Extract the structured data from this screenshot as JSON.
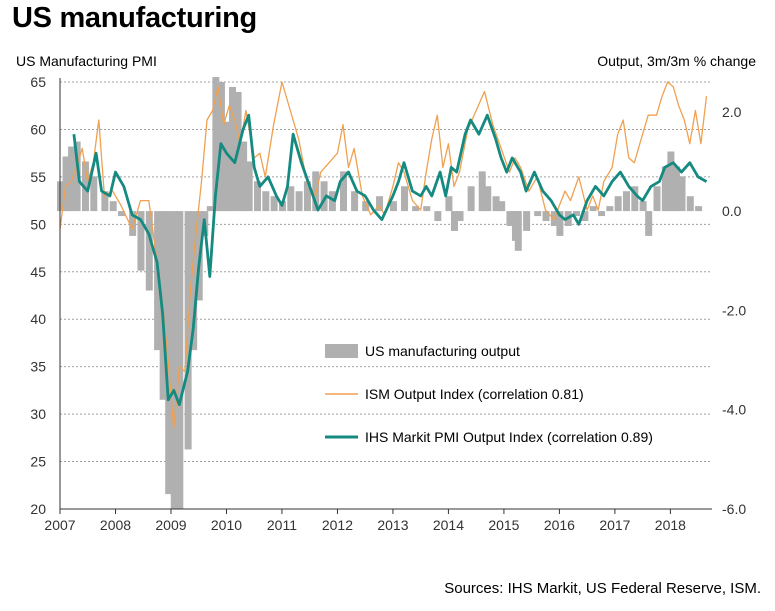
{
  "page": {
    "title": "US manufacturing",
    "source": "Sources: IHS Markit, US Federal Reserve, ISM."
  },
  "chart_data": {
    "type": "bar+line",
    "title": "US manufacturing",
    "ylabel_left": "US Manufacturing PMI",
    "ylabel_right": "Output, 3m/3m % change",
    "y_left_range": [
      20,
      65
    ],
    "y_left_ticks": [
      "20",
      "25",
      "30",
      "35",
      "40",
      "45",
      "50",
      "55",
      "60",
      "65"
    ],
    "y_right_range": [
      -6.0,
      2.6
    ],
    "y_right_ticks": [
      "-6.0",
      "-4.0",
      "-2.0",
      "0.0",
      "2.0"
    ],
    "x_range": [
      2007.0,
      2018.75
    ],
    "x_ticks": [
      "2007",
      "2008",
      "2009",
      "2010",
      "2011",
      "2012",
      "2013",
      "2014",
      "2015",
      "2016",
      "2017",
      "2018"
    ],
    "grid": "horizontal dashed",
    "legend": {
      "placement": "center-right",
      "entries": [
        "US manufacturing output",
        "ISM Output Index (correlation 0.81)",
        "IHS Markit PMI Output Index (correlation 0.89)"
      ]
    },
    "colors": {
      "output": "#b0b0b0",
      "ism": "#f0a050",
      "pmi": "#158a80"
    },
    "series": [
      {
        "name": "US manufacturing output",
        "axis": "right",
        "kind": "bar",
        "points": [
          [
            2007.0,
            0.6
          ],
          [
            2007.1,
            1.1
          ],
          [
            2007.2,
            1.3
          ],
          [
            2007.3,
            1.4
          ],
          [
            2007.45,
            1.0
          ],
          [
            2007.6,
            0.7
          ],
          [
            2007.8,
            0.4
          ],
          [
            2007.95,
            0.2
          ],
          [
            2008.1,
            -0.1
          ],
          [
            2008.3,
            -0.5
          ],
          [
            2008.45,
            -1.2
          ],
          [
            2008.6,
            -1.6
          ],
          [
            2008.75,
            -2.8
          ],
          [
            2008.85,
            -3.8
          ],
          [
            2008.95,
            -5.7
          ],
          [
            2009.05,
            -6.0
          ],
          [
            2009.15,
            -6.0
          ],
          [
            2009.3,
            -4.8
          ],
          [
            2009.4,
            -2.8
          ],
          [
            2009.5,
            -1.8
          ],
          [
            2009.6,
            -0.5
          ],
          [
            2009.7,
            0.1
          ],
          [
            2009.8,
            2.7
          ],
          [
            2009.9,
            2.6
          ],
          [
            2010.0,
            1.8
          ],
          [
            2010.1,
            2.5
          ],
          [
            2010.2,
            2.4
          ],
          [
            2010.3,
            1.4
          ],
          [
            2010.4,
            1.0
          ],
          [
            2010.55,
            0.6
          ],
          [
            2010.7,
            0.4
          ],
          [
            2010.85,
            0.3
          ],
          [
            2011.0,
            0.2
          ],
          [
            2011.15,
            0.5
          ],
          [
            2011.3,
            0.4
          ],
          [
            2011.45,
            0.6
          ],
          [
            2011.6,
            0.8
          ],
          [
            2011.75,
            0.6
          ],
          [
            2011.9,
            0.4
          ],
          [
            2012.1,
            0.8
          ],
          [
            2012.3,
            0.4
          ],
          [
            2012.5,
            0.2
          ],
          [
            2012.75,
            0.3
          ],
          [
            2013.0,
            0.2
          ],
          [
            2013.2,
            0.5
          ],
          [
            2013.4,
            0.1
          ],
          [
            2013.6,
            0.1
          ],
          [
            2013.8,
            -0.2
          ],
          [
            2014.0,
            0.3
          ],
          [
            2014.1,
            -0.4
          ],
          [
            2014.2,
            -0.2
          ],
          [
            2014.4,
            0.5
          ],
          [
            2014.6,
            0.8
          ],
          [
            2014.7,
            0.5
          ],
          [
            2014.85,
            0.3
          ],
          [
            2014.95,
            0.2
          ],
          [
            2015.1,
            -0.3
          ],
          [
            2015.2,
            -0.6
          ],
          [
            2015.25,
            -0.8
          ],
          [
            2015.4,
            -0.4
          ],
          [
            2015.6,
            -0.1
          ],
          [
            2015.75,
            -0.2
          ],
          [
            2015.9,
            -0.3
          ],
          [
            2016.0,
            -0.5
          ],
          [
            2016.15,
            -0.3
          ],
          [
            2016.3,
            -0.1
          ],
          [
            2016.45,
            -0.2
          ],
          [
            2016.6,
            0.1
          ],
          [
            2016.75,
            -0.1
          ],
          [
            2016.9,
            0.1
          ],
          [
            2017.05,
            0.3
          ],
          [
            2017.2,
            0.4
          ],
          [
            2017.35,
            0.5
          ],
          [
            2017.5,
            0.2
          ],
          [
            2017.6,
            -0.5
          ],
          [
            2017.75,
            0.5
          ],
          [
            2017.9,
            0.9
          ],
          [
            2018.0,
            1.2
          ],
          [
            2018.1,
            0.9
          ],
          [
            2018.2,
            0.7
          ],
          [
            2018.35,
            0.3
          ],
          [
            2018.5,
            0.1
          ]
        ]
      },
      {
        "name": "ISM Output Index (correlation 0.81)",
        "axis": "left",
        "kind": "line",
        "points": [
          [
            2007.0,
            49.5
          ],
          [
            2007.1,
            54.0
          ],
          [
            2007.2,
            54.5
          ],
          [
            2007.3,
            56.0
          ],
          [
            2007.4,
            58.0
          ],
          [
            2007.5,
            54.5
          ],
          [
            2007.6,
            56.5
          ],
          [
            2007.7,
            61.0
          ],
          [
            2007.8,
            53.0
          ],
          [
            2007.95,
            53.5
          ],
          [
            2008.1,
            52.0
          ],
          [
            2008.3,
            49.5
          ],
          [
            2008.45,
            52.5
          ],
          [
            2008.6,
            52.5
          ],
          [
            2008.75,
            46.0
          ],
          [
            2008.85,
            41.5
          ],
          [
            2008.95,
            35.5
          ],
          [
            2009.05,
            28.5
          ],
          [
            2009.15,
            35.0
          ],
          [
            2009.25,
            34.5
          ],
          [
            2009.35,
            43.0
          ],
          [
            2009.45,
            49.0
          ],
          [
            2009.55,
            54.5
          ],
          [
            2009.65,
            61.0
          ],
          [
            2009.75,
            62.0
          ],
          [
            2009.85,
            64.5
          ],
          [
            2009.95,
            60.5
          ],
          [
            2010.05,
            62.5
          ],
          [
            2010.15,
            61.0
          ],
          [
            2010.25,
            58.5
          ],
          [
            2010.35,
            62.0
          ],
          [
            2010.5,
            57.0
          ],
          [
            2010.6,
            57.5
          ],
          [
            2010.7,
            55.0
          ],
          [
            2010.85,
            60.5
          ],
          [
            2011.0,
            65.0
          ],
          [
            2011.15,
            62.0
          ],
          [
            2011.3,
            59.0
          ],
          [
            2011.45,
            54.5
          ],
          [
            2011.6,
            53.0
          ],
          [
            2011.7,
            55.5
          ],
          [
            2011.85,
            56.5
          ],
          [
            2012.0,
            57.5
          ],
          [
            2012.1,
            60.5
          ],
          [
            2012.2,
            56.0
          ],
          [
            2012.3,
            58.0
          ],
          [
            2012.45,
            53.0
          ],
          [
            2012.6,
            51.0
          ],
          [
            2012.75,
            52.0
          ],
          [
            2012.85,
            51.0
          ],
          [
            2013.0,
            54.0
          ],
          [
            2013.1,
            56.5
          ],
          [
            2013.2,
            55.5
          ],
          [
            2013.35,
            52.5
          ],
          [
            2013.5,
            51.5
          ],
          [
            2013.6,
            55.5
          ],
          [
            2013.7,
            59.0
          ],
          [
            2013.8,
            61.5
          ],
          [
            2013.9,
            56.0
          ],
          [
            2014.0,
            58.5
          ],
          [
            2014.1,
            54.0
          ],
          [
            2014.2,
            55.5
          ],
          [
            2014.35,
            60.0
          ],
          [
            2014.5,
            62.0
          ],
          [
            2014.65,
            64.0
          ],
          [
            2014.8,
            60.5
          ],
          [
            2014.95,
            58.0
          ],
          [
            2015.1,
            55.5
          ],
          [
            2015.2,
            57.0
          ],
          [
            2015.3,
            56.0
          ],
          [
            2015.45,
            53.5
          ],
          [
            2015.6,
            55.0
          ],
          [
            2015.75,
            51.5
          ],
          [
            2015.9,
            50.5
          ],
          [
            2016.0,
            52.0
          ],
          [
            2016.1,
            53.5
          ],
          [
            2016.2,
            52.5
          ],
          [
            2016.35,
            55.0
          ],
          [
            2016.5,
            51.5
          ],
          [
            2016.6,
            53.0
          ],
          [
            2016.7,
            51.5
          ],
          [
            2016.8,
            54.5
          ],
          [
            2016.95,
            56.0
          ],
          [
            2017.05,
            59.5
          ],
          [
            2017.15,
            61.0
          ],
          [
            2017.25,
            57.0
          ],
          [
            2017.35,
            56.5
          ],
          [
            2017.5,
            59.5
          ],
          [
            2017.6,
            61.5
          ],
          [
            2017.75,
            61.5
          ],
          [
            2017.85,
            63.5
          ],
          [
            2017.95,
            65.0
          ],
          [
            2018.05,
            64.5
          ],
          [
            2018.15,
            62.5
          ],
          [
            2018.25,
            61.0
          ],
          [
            2018.35,
            58.5
          ],
          [
            2018.45,
            62.0
          ],
          [
            2018.55,
            58.5
          ],
          [
            2018.65,
            63.5
          ]
        ]
      },
      {
        "name": "IHS Markit PMI Output Index (correlation 0.89)",
        "axis": "left",
        "kind": "line",
        "points": [
          [
            2007.25,
            59.5
          ],
          [
            2007.35,
            54.5
          ],
          [
            2007.5,
            53.5
          ],
          [
            2007.65,
            57.5
          ],
          [
            2007.75,
            53.5
          ],
          [
            2007.9,
            53.0
          ],
          [
            2008.0,
            55.5
          ],
          [
            2008.15,
            54.0
          ],
          [
            2008.3,
            51.0
          ],
          [
            2008.45,
            50.5
          ],
          [
            2008.6,
            49.0
          ],
          [
            2008.75,
            46.0
          ],
          [
            2008.85,
            40.5
          ],
          [
            2008.95,
            31.5
          ],
          [
            2009.05,
            32.5
          ],
          [
            2009.15,
            31.0
          ],
          [
            2009.3,
            34.5
          ],
          [
            2009.4,
            39.0
          ],
          [
            2009.5,
            45.5
          ],
          [
            2009.6,
            50.5
          ],
          [
            2009.7,
            44.5
          ],
          [
            2009.8,
            53.0
          ],
          [
            2009.9,
            58.5
          ],
          [
            2010.0,
            57.5
          ],
          [
            2010.15,
            56.5
          ],
          [
            2010.3,
            60.0
          ],
          [
            2010.4,
            61.5
          ],
          [
            2010.5,
            56.0
          ],
          [
            2010.6,
            54.0
          ],
          [
            2010.75,
            55.0
          ],
          [
            2010.9,
            53.0
          ],
          [
            2011.0,
            52.0
          ],
          [
            2011.1,
            54.0
          ],
          [
            2011.2,
            59.5
          ],
          [
            2011.35,
            56.5
          ],
          [
            2011.5,
            54.0
          ],
          [
            2011.65,
            51.5
          ],
          [
            2011.8,
            53.0
          ],
          [
            2011.95,
            52.5
          ],
          [
            2012.05,
            54.5
          ],
          [
            2012.2,
            55.5
          ],
          [
            2012.35,
            53.5
          ],
          [
            2012.5,
            53.0
          ],
          [
            2012.65,
            51.5
          ],
          [
            2012.8,
            50.5
          ],
          [
            2013.0,
            53.0
          ],
          [
            2013.1,
            54.5
          ],
          [
            2013.2,
            56.5
          ],
          [
            2013.35,
            53.5
          ],
          [
            2013.5,
            53.0
          ],
          [
            2013.6,
            54.0
          ],
          [
            2013.7,
            53.0
          ],
          [
            2013.85,
            55.5
          ],
          [
            2013.95,
            53.0
          ],
          [
            2014.05,
            56.0
          ],
          [
            2014.15,
            55.5
          ],
          [
            2014.3,
            59.5
          ],
          [
            2014.4,
            61.0
          ],
          [
            2014.55,
            59.5
          ],
          [
            2014.7,
            61.5
          ],
          [
            2014.85,
            59.0
          ],
          [
            2014.95,
            57.0
          ],
          [
            2015.05,
            55.5
          ],
          [
            2015.15,
            57.0
          ],
          [
            2015.3,
            55.5
          ],
          [
            2015.4,
            53.5
          ],
          [
            2015.55,
            55.5
          ],
          [
            2015.7,
            53.5
          ],
          [
            2015.85,
            52.5
          ],
          [
            2016.0,
            51.0
          ],
          [
            2016.1,
            50.5
          ],
          [
            2016.25,
            51.0
          ],
          [
            2016.35,
            50.0
          ],
          [
            2016.5,
            52.5
          ],
          [
            2016.65,
            54.0
          ],
          [
            2016.8,
            53.0
          ],
          [
            2016.95,
            54.5
          ],
          [
            2017.1,
            55.5
          ],
          [
            2017.25,
            54.0
          ],
          [
            2017.4,
            53.0
          ],
          [
            2017.5,
            52.5
          ],
          [
            2017.65,
            54.0
          ],
          [
            2017.8,
            54.5
          ],
          [
            2017.9,
            56.0
          ],
          [
            2018.05,
            56.5
          ],
          [
            2018.2,
            55.5
          ],
          [
            2018.35,
            56.5
          ],
          [
            2018.5,
            55.0
          ],
          [
            2018.65,
            54.5
          ]
        ]
      }
    ]
  }
}
